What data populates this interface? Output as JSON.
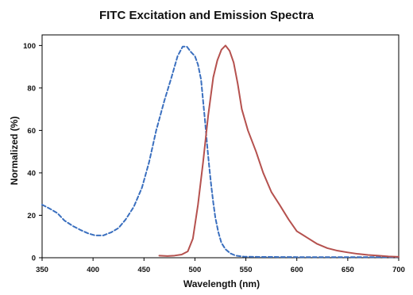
{
  "chart_data": {
    "type": "line",
    "title": "FITC Excitation and Emission Spectra",
    "xlabel": "Wavelength (nm)",
    "ylabel": "Normalized (%)",
    "xlim": [
      350,
      700
    ],
    "ylim": [
      0,
      105
    ],
    "xticks": [
      "350",
      "400",
      "450",
      "500",
      "550",
      "600",
      "650",
      "700"
    ],
    "yticks": [
      "0",
      "20",
      "40",
      "60",
      "80",
      "100"
    ],
    "grid": false,
    "legend": "none",
    "series": [
      {
        "key": "excitation",
        "color": "#3a6fbf",
        "dash": "dashed",
        "points": [
          [
            350,
            25
          ],
          [
            358,
            23
          ],
          [
            365,
            21
          ],
          [
            372,
            17.5
          ],
          [
            380,
            15
          ],
          [
            388,
            13
          ],
          [
            395,
            11.5
          ],
          [
            402,
            10.5
          ],
          [
            410,
            10.5
          ],
          [
            418,
            12
          ],
          [
            425,
            14
          ],
          [
            432,
            18
          ],
          [
            440,
            24
          ],
          [
            448,
            33
          ],
          [
            455,
            45
          ],
          [
            462,
            60
          ],
          [
            470,
            74
          ],
          [
            477,
            85
          ],
          [
            483,
            95
          ],
          [
            488,
            99.5
          ],
          [
            492,
            99.5
          ],
          [
            496,
            97
          ],
          [
            500,
            95
          ],
          [
            503,
            91
          ],
          [
            506,
            84
          ],
          [
            508,
            74
          ],
          [
            510,
            64
          ],
          [
            512,
            53
          ],
          [
            514,
            43
          ],
          [
            516,
            34
          ],
          [
            518,
            26
          ],
          [
            520,
            19
          ],
          [
            523,
            12
          ],
          [
            526,
            7
          ],
          [
            530,
            4
          ],
          [
            535,
            2
          ],
          [
            540,
            1
          ],
          [
            548,
            0.5
          ],
          [
            560,
            0.4
          ],
          [
            600,
            0.3
          ],
          [
            650,
            0.3
          ],
          [
            700,
            0.3
          ]
        ]
      },
      {
        "key": "emission",
        "color": "#b5514e",
        "dash": "solid",
        "points": [
          [
            465,
            1
          ],
          [
            473,
            0.8
          ],
          [
            480,
            1
          ],
          [
            487,
            1.5
          ],
          [
            493,
            3
          ],
          [
            498,
            9
          ],
          [
            503,
            25
          ],
          [
            508,
            45
          ],
          [
            513,
            67
          ],
          [
            518,
            85
          ],
          [
            522,
            93
          ],
          [
            526,
            98
          ],
          [
            530,
            100
          ],
          [
            534,
            97.5
          ],
          [
            538,
            92
          ],
          [
            542,
            82
          ],
          [
            546,
            70
          ],
          [
            552,
            60
          ],
          [
            560,
            50
          ],
          [
            567,
            40
          ],
          [
            575,
            31
          ],
          [
            583,
            25
          ],
          [
            592,
            18
          ],
          [
            600,
            12.5
          ],
          [
            610,
            9.5
          ],
          [
            620,
            6.5
          ],
          [
            630,
            4.5
          ],
          [
            640,
            3.3
          ],
          [
            650,
            2.5
          ],
          [
            660,
            1.8
          ],
          [
            670,
            1.3
          ],
          [
            680,
            1
          ],
          [
            690,
            0.6
          ],
          [
            700,
            0.4
          ]
        ]
      }
    ]
  }
}
